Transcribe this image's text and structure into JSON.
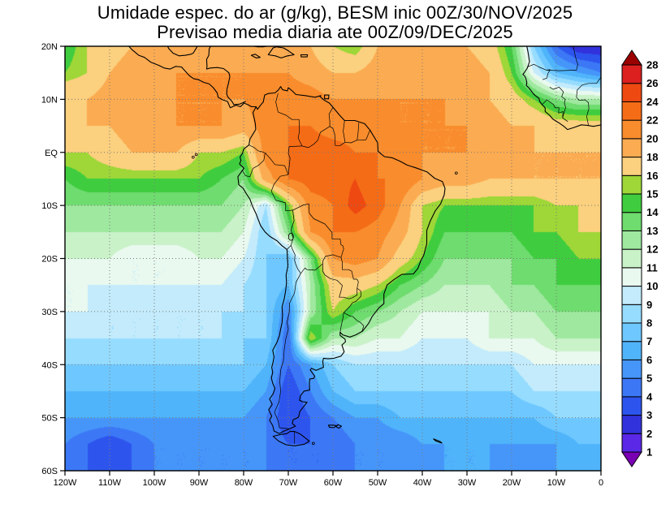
{
  "title": {
    "line1": "Umidade espec. do ar (g/kg), BESM inic 00Z/30/NOV/2025",
    "line2": "Previsao media diaria ate 00Z/09/DEC/2025"
  },
  "chart_data": {
    "type": "heatmap",
    "title": "Umidade espec. do ar (g/kg), BESM inic 00Z/30/NOV/2025",
    "subtitle": "Previsao media diaria ate 00Z/09/DEC/2025",
    "variable": "Umidade especifica do ar",
    "units": "g/kg",
    "model": "BESM",
    "init_time": "00Z/30/NOV/2025",
    "valid_until": "00Z/09/DEC/2025",
    "x_ticks": [
      "120W",
      "110W",
      "100W",
      "90W",
      "80W",
      "70W",
      "60W",
      "50W",
      "40W",
      "30W",
      "20W",
      "10W",
      "0"
    ],
    "y_ticks": [
      "20N",
      "10N",
      "EQ",
      "10S",
      "20S",
      "30S",
      "40S",
      "50S",
      "60S"
    ],
    "lon_range": [
      -120,
      0
    ],
    "lat_range": [
      -60,
      20
    ],
    "grid_on": true,
    "legend_position": "right-colorbar",
    "levels": [
      1,
      2,
      3,
      4,
      5,
      6,
      7,
      8,
      9,
      10,
      11,
      12,
      13,
      14,
      15,
      16,
      18,
      20,
      22,
      24,
      26,
      28
    ],
    "colorbar_labels_top_to_bottom": [
      "28",
      "26",
      "24",
      "22",
      "20",
      "18",
      "16",
      "15",
      "14",
      "13",
      "12",
      "11",
      "10",
      "9",
      "8",
      "7",
      "6",
      "5",
      "4",
      "3",
      "2",
      "1"
    ],
    "palette": [
      "#7a00b4",
      "#5a28e6",
      "#3232dc",
      "#2d55ee",
      "#3c78f5",
      "#4696fa",
      "#50b4fa",
      "#6ec8ff",
      "#96dcff",
      "#c3ebfb",
      "#e9f9ef",
      "#c9f2c9",
      "#9fe89f",
      "#6edc6e",
      "#3fcd3f",
      "#9ed737",
      "#fbd07e",
      "#fbab51",
      "#f98c2c",
      "#f56c17",
      "#ee4911",
      "#dc1f1f",
      "#9b0000"
    ],
    "grid_lons": [
      -120,
      -115,
      -110,
      -105,
      -100,
      -95,
      -90,
      -85,
      -80,
      -75,
      -70,
      -65,
      -60,
      -55,
      -50,
      -45,
      -40,
      -35,
      -30,
      -25,
      -20,
      -15,
      -10,
      -5,
      0
    ],
    "grid_lats": [
      20,
      15,
      10,
      5,
      0,
      -5,
      -10,
      -15,
      -20,
      -25,
      -30,
      -35,
      -40,
      -45,
      -50,
      -55,
      -60
    ],
    "values": [
      [
        14,
        16,
        17,
        18,
        19,
        19,
        19,
        19,
        19,
        19,
        19,
        18,
        16,
        15,
        18,
        19,
        19,
        19,
        18,
        17,
        14,
        8,
        4,
        2,
        2
      ],
      [
        15,
        16,
        18,
        19,
        19,
        20,
        20,
        20,
        20,
        20,
        20,
        19,
        18,
        18,
        19,
        19,
        20,
        19,
        19,
        18,
        15,
        10,
        7,
        6,
        5
      ],
      [
        18,
        18,
        19,
        19,
        20,
        20,
        20,
        20,
        20,
        21,
        21,
        21,
        20,
        20,
        20,
        20,
        20,
        20,
        19,
        18,
        17,
        15,
        13,
        12,
        12
      ],
      [
        17,
        18,
        18,
        19,
        19,
        20,
        20,
        20,
        19,
        21,
        22,
        22,
        21,
        21,
        21,
        20,
        20,
        20,
        20,
        19,
        18,
        18,
        17,
        17,
        17
      ],
      [
        16,
        16,
        17,
        18,
        18,
        18,
        16,
        16,
        15,
        21,
        22,
        23,
        23,
        22,
        22,
        21,
        20,
        20,
        20,
        19,
        19,
        18,
        18,
        18,
        18
      ],
      [
        14,
        15,
        15,
        15,
        15,
        15,
        15,
        14,
        13,
        19,
        22,
        23,
        23,
        24,
        22,
        22,
        20,
        19,
        19,
        18,
        18,
        18,
        18,
        18,
        18
      ],
      [
        13,
        13,
        13,
        13,
        13,
        13,
        13,
        13,
        12,
        9,
        15,
        21,
        22,
        25,
        23,
        20,
        16,
        15,
        15,
        15,
        15,
        15,
        16,
        16,
        17
      ],
      [
        12,
        12,
        12,
        12,
        12,
        12,
        12,
        12,
        11,
        8,
        13,
        20,
        22,
        22,
        21,
        19,
        16,
        14,
        14,
        14,
        14,
        15,
        15,
        16,
        16
      ],
      [
        11,
        11,
        11,
        10,
        10,
        10,
        11,
        11,
        10,
        8,
        7,
        13,
        20,
        21,
        20,
        17,
        15,
        13,
        13,
        13,
        13,
        14,
        14,
        15,
        15
      ],
      [
        10,
        10,
        10,
        10,
        10,
        10,
        10,
        10,
        9,
        8,
        7,
        12,
        17,
        17,
        16,
        14,
        13,
        12,
        12,
        12,
        13,
        13,
        14,
        14,
        14
      ],
      [
        10,
        10,
        9,
        9,
        9,
        9,
        9,
        9,
        9,
        8,
        5,
        12,
        16,
        14,
        13,
        12,
        11,
        11,
        11,
        11,
        12,
        12,
        13,
        13,
        13
      ],
      [
        9,
        9,
        9,
        9,
        9,
        9,
        9,
        9,
        8,
        8,
        4,
        16,
        12,
        12,
        11,
        11,
        10,
        10,
        10,
        11,
        11,
        11,
        12,
        12,
        12
      ],
      [
        8,
        8,
        8,
        8,
        8,
        8,
        8,
        8,
        8,
        7,
        4,
        6,
        8,
        9,
        9,
        9,
        9,
        9,
        9,
        9,
        9,
        10,
        10,
        10,
        10
      ],
      [
        7,
        7,
        7,
        7,
        7,
        7,
        7,
        7,
        7,
        6,
        3,
        5,
        7,
        8,
        8,
        8,
        8,
        8,
        8,
        8,
        8,
        9,
        9,
        9,
        9
      ],
      [
        6,
        6,
        6,
        6,
        6,
        6,
        6,
        6,
        6,
        5,
        3,
        4,
        5,
        6,
        6,
        7,
        7,
        7,
        7,
        7,
        7,
        7,
        8,
        8,
        8
      ],
      [
        5,
        4,
        3,
        4,
        5,
        5,
        5,
        5,
        5,
        5,
        4,
        4,
        4,
        5,
        5,
        5,
        6,
        6,
        6,
        6,
        6,
        6,
        6,
        7,
        7
      ],
      [
        5,
        4,
        4,
        4,
        5,
        5,
        5,
        5,
        5,
        5,
        4,
        4,
        4,
        5,
        5,
        5,
        5,
        6,
        6,
        6,
        5,
        5,
        6,
        6,
        6
      ]
    ]
  }
}
